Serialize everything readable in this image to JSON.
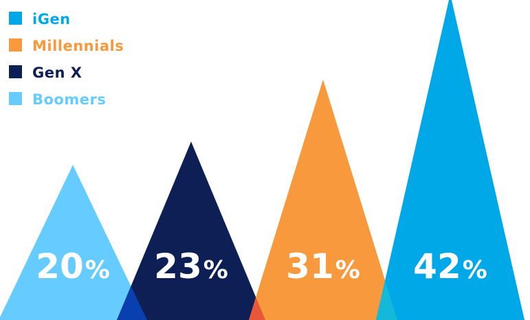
{
  "chart_data": {
    "type": "area",
    "title": "",
    "xlabel": "",
    "ylabel": "",
    "ylim": [
      0,
      45
    ],
    "grid": false,
    "legend": "top-left",
    "categories": [
      "Boomers",
      "Gen X",
      "Millennials",
      "iGen"
    ],
    "values": [
      20,
      23,
      31,
      42
    ],
    "value_labels": [
      "20",
      "23",
      "31",
      "42"
    ],
    "value_suffix": "%",
    "legend_entries": [
      {
        "name": "iGen",
        "color": "#00A8E8"
      },
      {
        "name": "Millennials",
        "color": "#F7993C"
      },
      {
        "name": "Gen X",
        "color": "#0D1F55"
      },
      {
        "name": "Boomers",
        "color": "#66CCFF"
      }
    ],
    "colors": {
      "Boomers": "#66CCFF",
      "Gen X": "#0D1F55",
      "Millennials": "#F7993C",
      "iGen": "#00A8E8"
    },
    "overlap_colors": [
      "#0A3FB0",
      "#E8573A",
      "#14B8D8"
    ]
  }
}
